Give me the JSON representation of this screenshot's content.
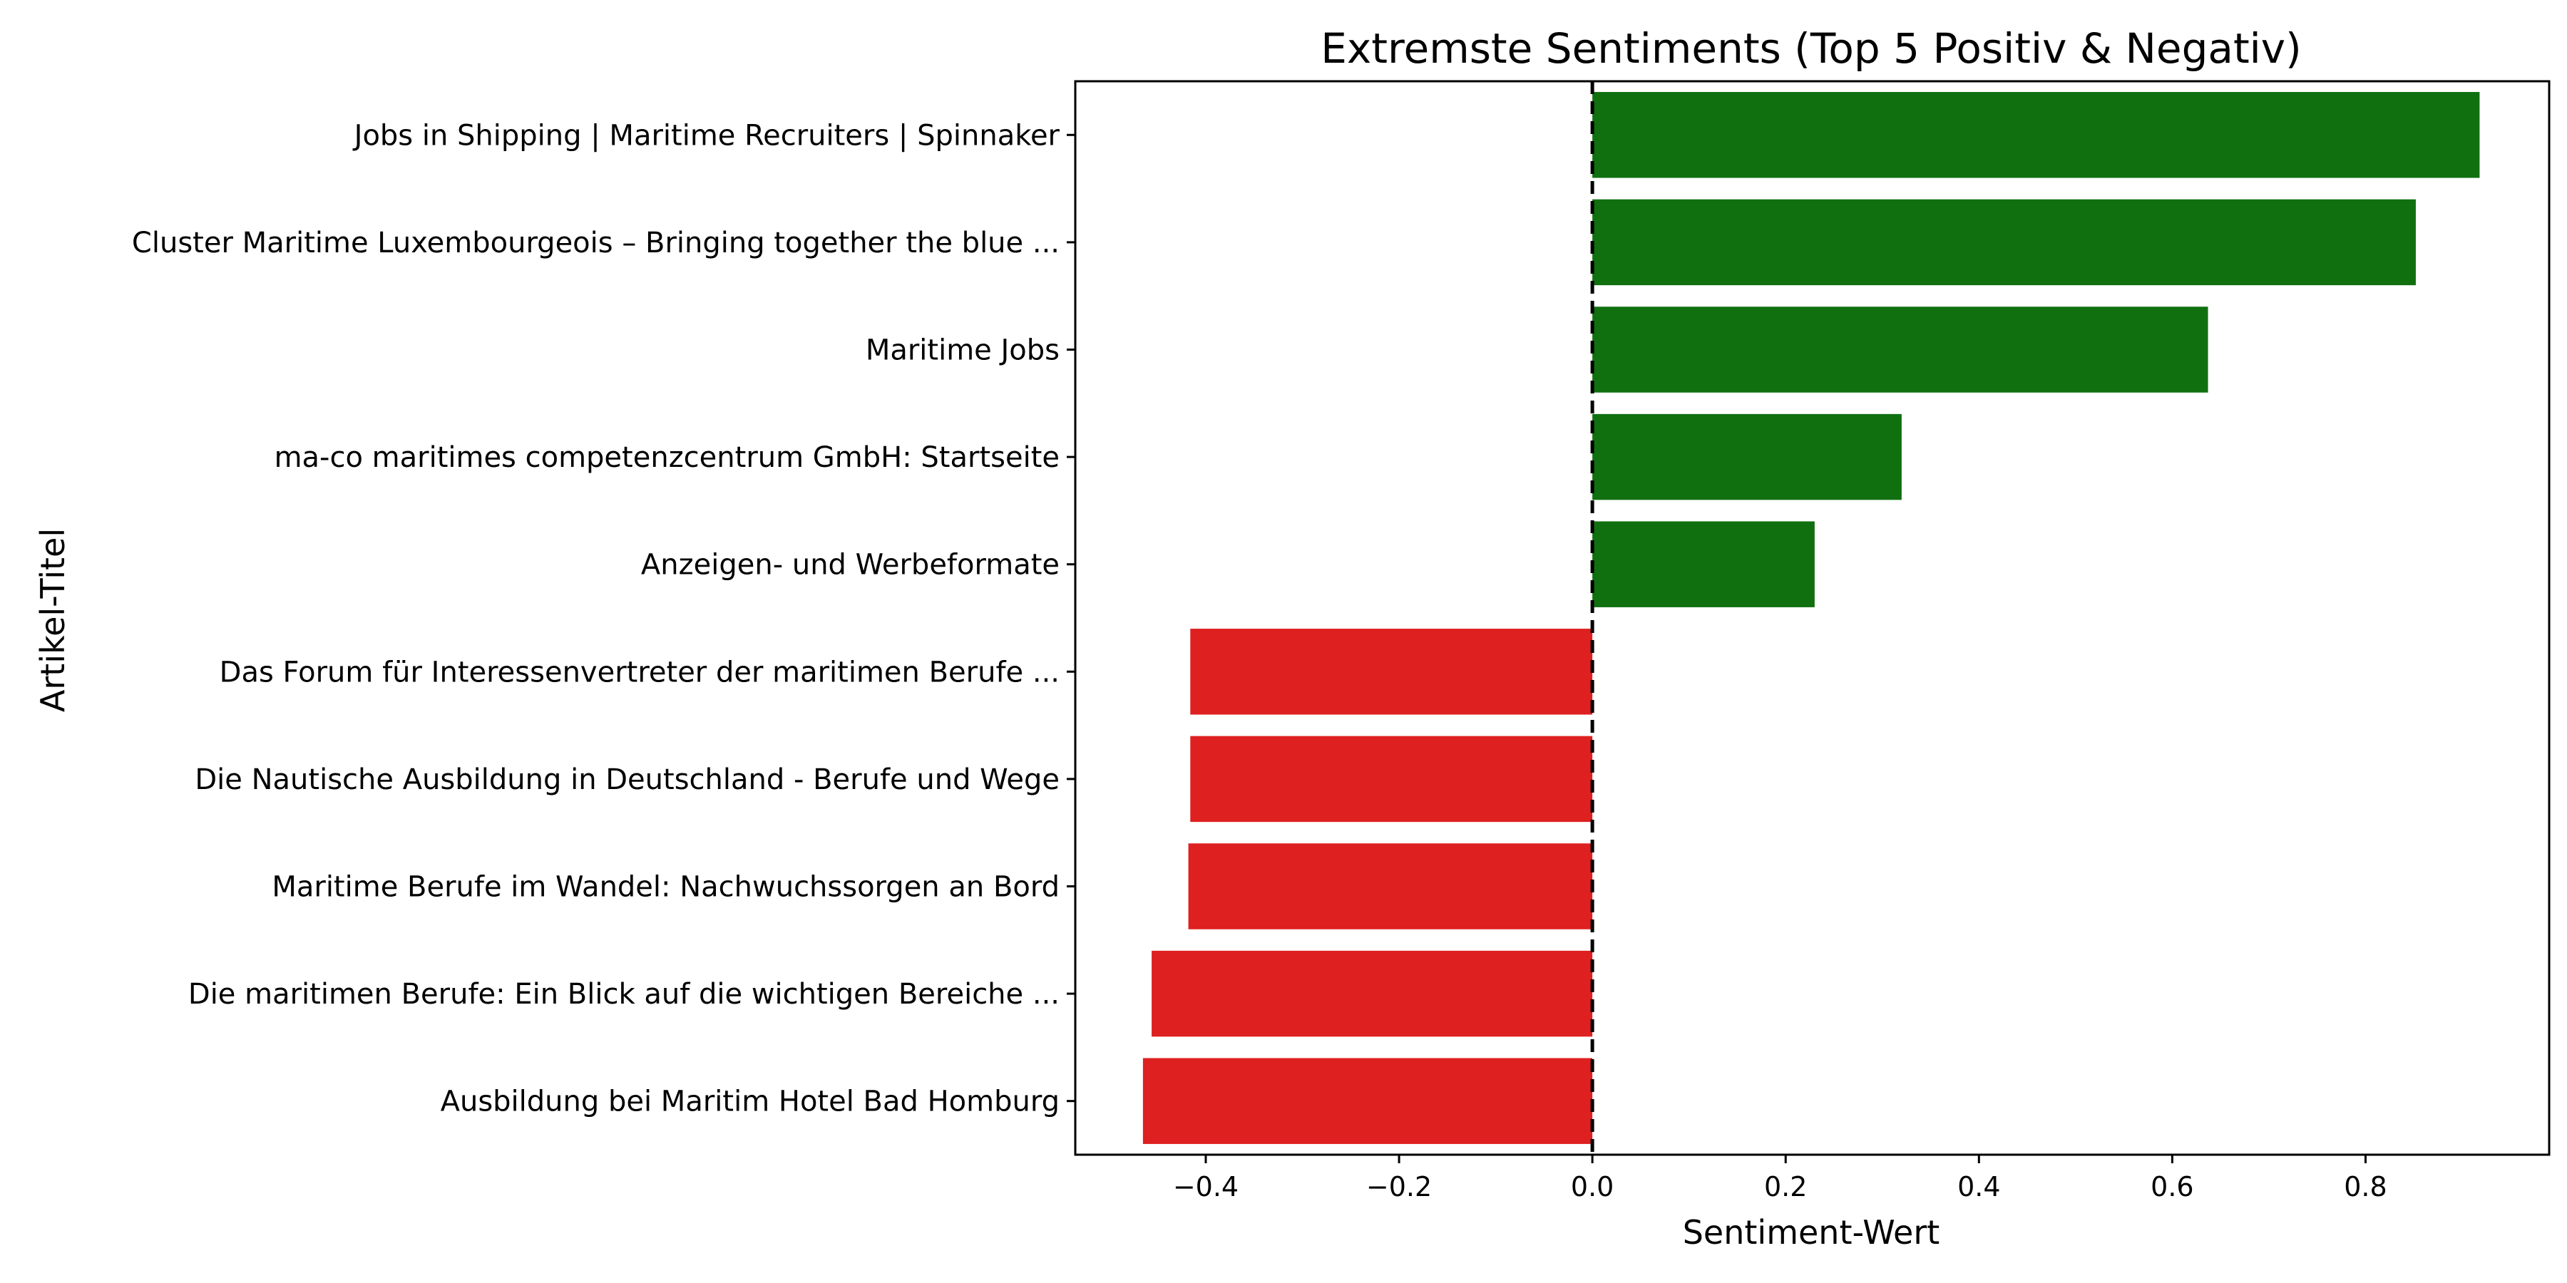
{
  "chart_data": {
    "type": "bar",
    "orientation": "horizontal",
    "title": "Extremste Sentiments (Top 5 Positiv & Negativ)",
    "xlabel": "Sentiment-Wert",
    "ylabel": "Artikel-Titel",
    "xlim": [
      -0.535,
      0.99
    ],
    "xticks": [
      -0.4,
      -0.2,
      0.0,
      0.2,
      0.4,
      0.6,
      0.8
    ],
    "xtick_labels": [
      "−0.4",
      "−0.2",
      "0.0",
      "0.2",
      "0.4",
      "0.6",
      "0.8"
    ],
    "grid": false,
    "zero_line": {
      "x": 0,
      "style": "dashed",
      "color": "#000000"
    },
    "colors": {
      "positive": "#107010",
      "negative": "#de2020"
    },
    "categories": [
      "Jobs in Shipping | Maritime Recruiters | Spinnaker",
      "Cluster Maritime Luxembourgeois – Bringing together the blue ...",
      "Maritime Jobs",
      "ma-co maritimes competenzcentrum GmbH: Startseite",
      "Anzeigen- und Werbeformate",
      "Das Forum für Interessenvertreter der maritimen Berufe ...",
      "Die Nautische Ausbildung in Deutschland - Berufe und Wege",
      "Maritime Berufe im Wandel: Nachwuchssorgen an Bord",
      "Die maritimen Berufe: Ein Blick auf die wichtigen Bereiche ...",
      "Ausbildung bei Maritim Hotel Bad Homburg"
    ],
    "values": [
      0.918,
      0.852,
      0.637,
      0.32,
      0.23,
      -0.416,
      -0.416,
      -0.418,
      -0.456,
      -0.465
    ]
  }
}
